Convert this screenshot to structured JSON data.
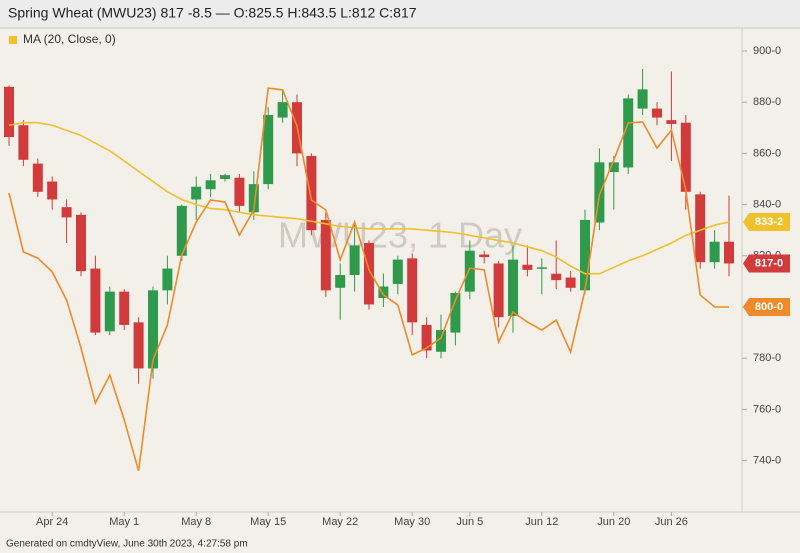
{
  "header": {
    "title": "Spring Wheat (MWU23) 817 -8.5 — O:825.5 H:843.5 L:812 C:817"
  },
  "footer": "Generated on cmdtyView, June 30th 2023, 4:27:58 pm",
  "chart_data": {
    "type": "candlestick",
    "watermark": "MWU23, 1 Day",
    "categories": [
      null,
      null,
      null,
      "Apr 24",
      null,
      null,
      null,
      null,
      "May 1",
      null,
      null,
      null,
      null,
      "May 8",
      null,
      null,
      null,
      null,
      "May 15",
      null,
      null,
      null,
      null,
      "May 22",
      null,
      null,
      null,
      null,
      "May 30",
      null,
      null,
      null,
      "Jun 5",
      null,
      null,
      null,
      null,
      "Jun 12",
      null,
      null,
      null,
      null,
      "Jun 20",
      null,
      null,
      null,
      "Jun 26",
      null,
      null,
      null,
      null
    ],
    "open": [
      886,
      871,
      856,
      849,
      839,
      836,
      815,
      790.5,
      806,
      794,
      776,
      806.5,
      820,
      842,
      846,
      850,
      850.5,
      837,
      848,
      874,
      880,
      859,
      834,
      807.5,
      812.5,
      825,
      803.5,
      809,
      819,
      793,
      782.5,
      790,
      806,
      820.5,
      817,
      796.5,
      816.5,
      815,
      813,
      811.5,
      806.5,
      833,
      852.7,
      854.5,
      877.5,
      877.5,
      873,
      872,
      844,
      817.5,
      825.5
    ],
    "high": [
      886.5,
      873,
      858,
      851,
      842,
      837,
      820,
      808,
      807,
      796,
      808,
      820,
      840,
      851,
      852,
      852,
      852,
      853,
      878,
      885,
      883,
      860,
      837,
      817,
      832,
      826,
      813,
      820,
      821,
      796,
      797,
      806,
      826,
      822,
      818,
      824,
      824,
      819,
      826,
      814,
      838,
      862,
      859,
      883,
      893,
      880,
      892,
      875,
      845,
      830,
      843.5
    ],
    "low": [
      863,
      855,
      843,
      838,
      825,
      812,
      789,
      789,
      791,
      770,
      772,
      801,
      818,
      834,
      843,
      849,
      837,
      834,
      846,
      872,
      855,
      828,
      804,
      795,
      806,
      799,
      800,
      805,
      789,
      780,
      780,
      785,
      803,
      817,
      792,
      790,
      812,
      805,
      807,
      806,
      805,
      830,
      838,
      852,
      875,
      871,
      857,
      838,
      815,
      815,
      812
    ],
    "close": [
      866.4,
      857.5,
      845,
      842,
      835,
      814,
      790,
      806,
      793,
      776,
      806.5,
      815,
      839.5,
      847,
      849.5,
      851.5,
      839.5,
      848,
      875,
      880,
      860,
      830,
      806.5,
      812.5,
      824,
      801,
      808,
      818.5,
      794,
      783,
      791,
      805.5,
      822,
      819.5,
      796,
      818.5,
      814.5,
      815.5,
      810.5,
      807.5,
      834,
      856.5,
      856.5,
      881.5,
      885,
      874,
      871.5,
      845,
      817.5,
      825.5,
      817
    ],
    "up_color": "#2f9a4c",
    "down_color": "#d23b3b",
    "series": [
      {
        "name": "MA (20, Close, 0)",
        "color": "#f0c12c",
        "values": [
          871,
          872,
          872,
          871,
          869,
          867,
          864,
          861,
          857,
          853,
          849,
          845,
          842,
          840,
          838.5,
          838,
          837,
          836,
          835.5,
          835,
          834.5,
          833.5,
          832.5,
          831.5,
          831,
          830.5,
          830.5,
          830.5,
          830.5,
          830,
          829.5,
          829,
          828,
          827,
          826,
          825,
          823.5,
          822,
          819.5,
          816,
          813,
          813,
          815.5,
          818,
          820,
          822.5,
          825,
          828,
          830,
          832,
          833.2
        ]
      },
      {
        "color": "#ee8a2a",
        "values": [
          844.5,
          821.5,
          819.1,
          813.7,
          802.7,
          784,
          762.5,
          773.4,
          755.9,
          736,
          779.3,
          793,
          820.3,
          833.2,
          841.8,
          841,
          828.1,
          837.9,
          885.5,
          884.8,
          870.7,
          841.8,
          837.9,
          818.4,
          833.2,
          814.5,
          804.7,
          800.8,
          781.3,
          784,
          787.9,
          802.7,
          815.2,
          814.5,
          786.3,
          798,
          794.1,
          791,
          794.9,
          782.4,
          806.6,
          843.8,
          857.4,
          871.9,
          872.3,
          862.1,
          869.1,
          845.7,
          804.7,
          800,
          800
        ]
      }
    ],
    "ylim": [
      720.7,
      908.2
    ],
    "yticks": [
      {
        "value": 740,
        "label": "740-0"
      },
      {
        "value": 760,
        "label": "760-0"
      },
      {
        "value": 780,
        "label": "780-0"
      },
      {
        "value": 800,
        "label": "800-0"
      },
      {
        "value": 820,
        "label": "820-0"
      },
      {
        "value": 840,
        "label": "840-0"
      },
      {
        "value": 860,
        "label": "860-0"
      },
      {
        "value": 880,
        "label": "880-0"
      },
      {
        "value": 900,
        "label": "900-0"
      }
    ],
    "price_badges": [
      {
        "value": 833.2,
        "label": "833-2",
        "color": "#f0c12c"
      },
      {
        "value": 817,
        "label": "817-0",
        "color": "#d23b3b"
      },
      {
        "value": 800,
        "label": "800-0",
        "color": "#ee8a2a"
      }
    ]
  }
}
